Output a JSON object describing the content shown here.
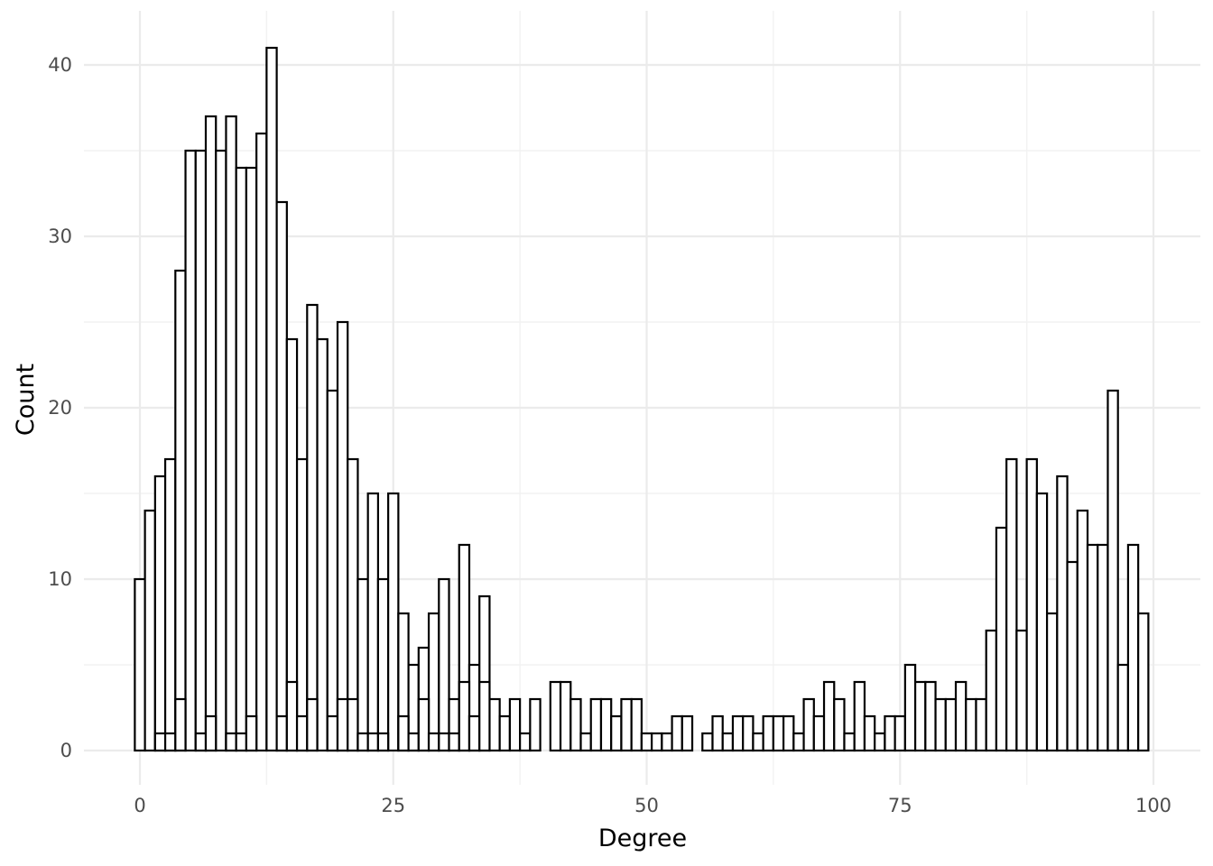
{
  "chart_data": {
    "type": "bar",
    "subtype": "histogram",
    "title": "",
    "xlabel": "Degree",
    "ylabel": "Count",
    "xlim": [
      -1.5,
      101.5
    ],
    "ylim": [
      -1.5,
      43
    ],
    "x_ticks": [
      0,
      25,
      50,
      75,
      100
    ],
    "y_ticks": [
      0,
      10,
      20,
      30,
      40
    ],
    "grid": true,
    "bin_width": 1,
    "bar_fill": "#ffffff",
    "bar_outline": "#000000",
    "series": [
      {
        "x": [
          0,
          1,
          2,
          3,
          4,
          5,
          6,
          7,
          8,
          9,
          10,
          11,
          12,
          13,
          14,
          15,
          16,
          17,
          18,
          19,
          20,
          21,
          22,
          23,
          24,
          25,
          26,
          27,
          28,
          29,
          30,
          31,
          32,
          33,
          34,
          35,
          36,
          37,
          38,
          39,
          41,
          42,
          43,
          44,
          45,
          46,
          47,
          48,
          49,
          50,
          51,
          52,
          53,
          54,
          56,
          57,
          58,
          59,
          60,
          61,
          62,
          63,
          64,
          65,
          66,
          67,
          68,
          69,
          70,
          71,
          72,
          73,
          74,
          75,
          76,
          77,
          78,
          79,
          80,
          81,
          82,
          83,
          84,
          85,
          86,
          87,
          88,
          89,
          90,
          91,
          92,
          93,
          94,
          95,
          96,
          97,
          98,
          99
        ],
        "values": [
          10,
          14,
          16,
          17,
          28,
          35,
          35,
          37,
          35,
          37,
          34,
          34,
          36,
          41,
          32,
          24,
          17,
          26,
          24,
          21,
          25,
          17,
          10,
          15,
          10,
          15,
          8,
          5,
          6,
          8,
          10,
          3,
          12,
          5,
          9,
          3,
          2,
          3,
          1,
          3,
          4,
          4,
          3,
          1,
          3,
          3,
          2,
          3,
          3,
          1,
          1,
          1,
          2,
          2,
          1,
          2,
          1,
          2,
          2,
          1,
          2,
          2,
          2,
          1,
          3,
          2,
          4,
          3,
          1,
          4,
          2,
          1,
          2,
          2,
          5,
          4,
          4,
          3,
          3,
          4,
          3,
          3,
          7,
          13,
          17,
          7,
          17,
          15,
          8,
          16,
          11,
          14,
          12,
          12,
          21,
          5,
          12,
          8
        ]
      },
      {
        "x": [
          0,
          1,
          2,
          3,
          4,
          5,
          6,
          7,
          8,
          9,
          10,
          11,
          12,
          13,
          14,
          15,
          16,
          17,
          18,
          19,
          20,
          21,
          22,
          23,
          24,
          25,
          26,
          27,
          28,
          29,
          30,
          31,
          32,
          33,
          34
        ],
        "values": [
          0,
          0,
          1,
          1,
          3,
          0,
          1,
          2,
          0,
          1,
          1,
          2,
          0,
          0,
          2,
          4,
          2,
          3,
          0,
          2,
          3,
          3,
          1,
          1,
          1,
          0,
          2,
          1,
          3,
          1,
          1,
          1,
          4,
          2,
          4
        ]
      }
    ]
  }
}
